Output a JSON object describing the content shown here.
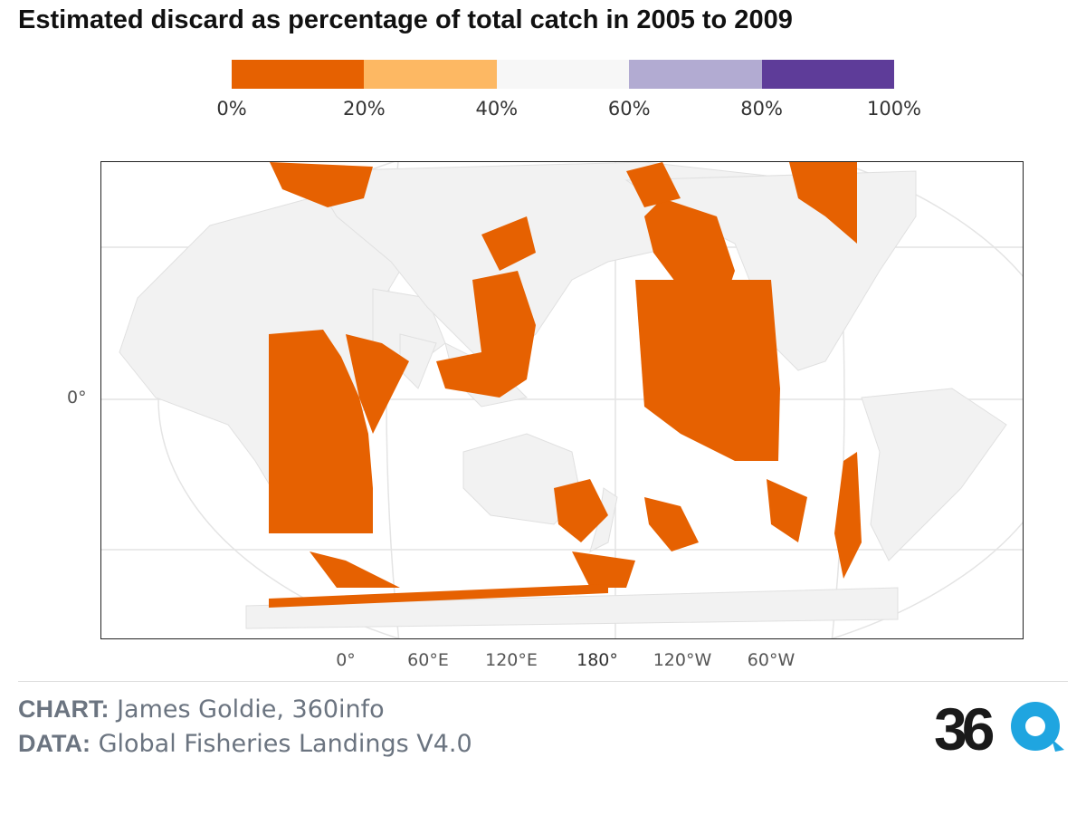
{
  "title": "Estimated discard as percentage of total catch in 2005 to 2009",
  "legend": {
    "colors": [
      "#e66101",
      "#fdb863",
      "#f7f7f7",
      "#b2abd2",
      "#5e3c99"
    ],
    "labels": [
      "0%",
      "20%",
      "40%",
      "60%",
      "80%",
      "100%"
    ]
  },
  "map": {
    "land_color": "#f2f2f2",
    "discard_color": "#e66101",
    "y_axis_label": "0°",
    "x_axis_labels": [
      "0°",
      "60°E",
      "120°E",
      "180°",
      "120°W",
      "60°W"
    ]
  },
  "footer": {
    "chart_label": "CHART:",
    "chart_value": "James Goldie, 360info",
    "data_label": "DATA:",
    "data_value": "Global Fisheries Landings V4.0",
    "logo_text": "360"
  }
}
